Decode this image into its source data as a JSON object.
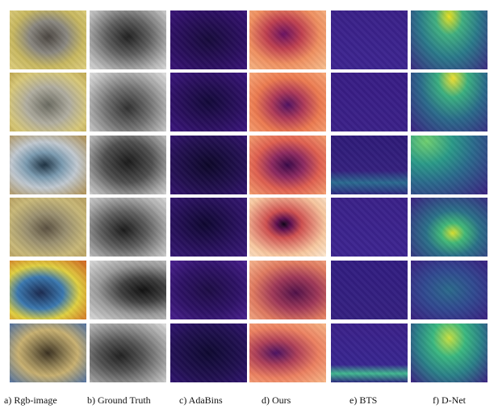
{
  "figure": {
    "columns": [
      {
        "id": "rgb",
        "caption": "a) Rgb-image"
      },
      {
        "id": "gt",
        "caption": "b) Ground Truth"
      },
      {
        "id": "adabins",
        "caption": "c) AdaBins"
      },
      {
        "id": "ours",
        "caption": "d) Ours"
      },
      {
        "id": "bts",
        "caption": "e) BTS"
      },
      {
        "id": "dnet",
        "caption": "f) D-Net"
      }
    ],
    "rows": 6
  }
}
